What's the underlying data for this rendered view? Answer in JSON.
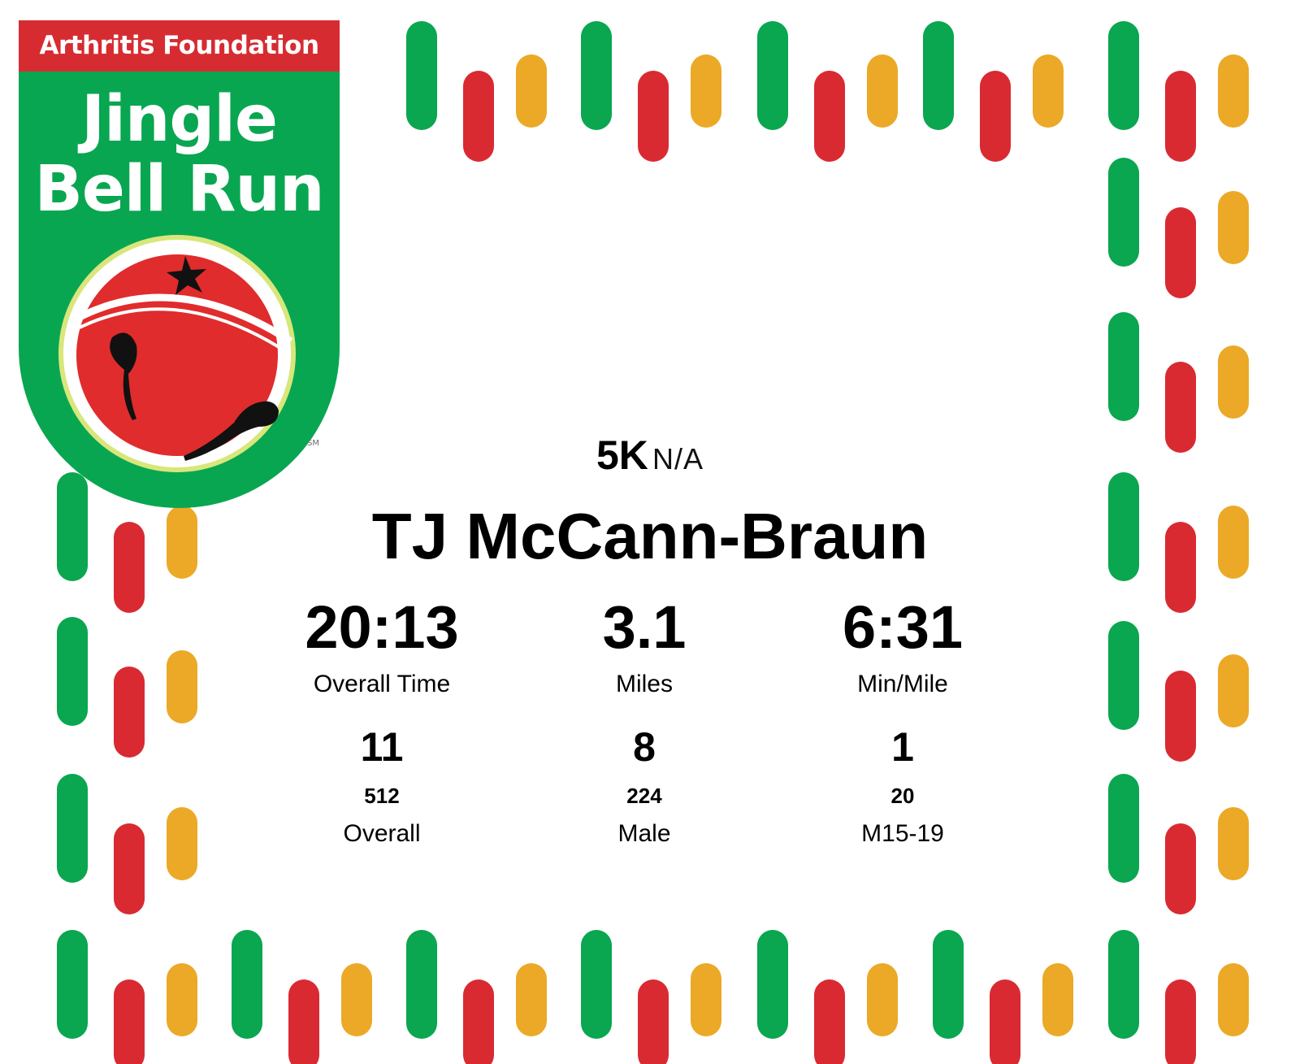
{
  "logo": {
    "org_name": "Arthritis Foundation",
    "event_line1": "Jingle",
    "event_line2": "Bell Run",
    "service_mark": "SM",
    "colors": {
      "green": "#09a651",
      "red": "#d62c31",
      "orange": "#efa928",
      "ring": "#d9e67a"
    }
  },
  "race": {
    "distance": "5K",
    "category": "N/A"
  },
  "runner": {
    "name": "TJ McCann-Braun"
  },
  "stats": [
    {
      "value": "20:13",
      "label": "Overall Time"
    },
    {
      "value": "3.1",
      "label": "Miles"
    },
    {
      "value": "6:31",
      "label": "Min/Mile"
    }
  ],
  "placements": [
    {
      "place": "11",
      "total": "512",
      "label": "Overall"
    },
    {
      "place": "8",
      "total": "224",
      "label": "Male"
    },
    {
      "place": "1",
      "total": "20",
      "label": "M15-19"
    }
  ],
  "border": {
    "colors": [
      "#0aa650",
      "#d92a32",
      "#eba927"
    ],
    "pattern": "bell-stripes"
  }
}
